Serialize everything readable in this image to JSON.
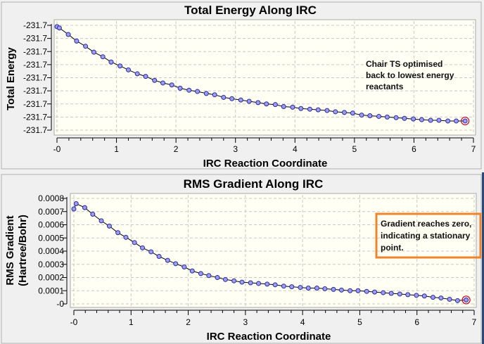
{
  "chart_data": [
    {
      "type": "line",
      "title": "Total Energy Along IRC",
      "xlabel": "IRC Reaction Coordinate",
      "ylabel": "Total Energy",
      "xlim": [
        0,
        7
      ],
      "ylim": [
        -231.6936,
        -231.692
      ],
      "grid": true,
      "x_ticks": [
        "-0",
        "1",
        "2",
        "3",
        "4",
        "5",
        "6",
        "7"
      ],
      "y_ticks": [
        "-231.7",
        "-231.7",
        "-231.7",
        "-231.7",
        "-231.7",
        "-231.7",
        "-231.7",
        "-231.7",
        "-231.7"
      ],
      "annotation": [
        "Chair TS optimised",
        "back to lowest energy",
        "reactants"
      ],
      "x": [
        0,
        0.04,
        0.19,
        0.33,
        0.48,
        0.62,
        0.77,
        0.91,
        1.06,
        1.2,
        1.35,
        1.49,
        1.64,
        1.78,
        1.93,
        2.07,
        2.22,
        2.36,
        2.51,
        2.65,
        2.8,
        2.94,
        3.09,
        3.23,
        3.38,
        3.52,
        3.67,
        3.81,
        3.96,
        4.1,
        4.25,
        4.39,
        4.54,
        4.68,
        4.83,
        4.97,
        5.12,
        5.26,
        5.41,
        5.55,
        5.7,
        5.84,
        5.99,
        6.13,
        6.28,
        6.42,
        6.57,
        6.71,
        6.86
      ],
      "values": [
        -231.69202,
        -231.69204,
        -231.69214,
        -231.69224,
        -231.69232,
        -231.69241,
        -231.69248,
        -231.69256,
        -231.69262,
        -231.69268,
        -231.69274,
        -231.69278,
        -231.69284,
        -231.69288,
        -231.69291,
        -231.69296,
        -231.69299,
        -231.69301,
        -231.69304,
        -231.69306,
        -231.6931,
        -231.69312,
        -231.69314,
        -231.69316,
        -231.69318,
        -231.6932,
        -231.69321,
        -231.69324,
        -231.69325,
        -231.69327,
        -231.69328,
        -231.69329,
        -231.6933,
        -231.69332,
        -231.69333,
        -231.69334,
        -231.69337,
        -231.69338,
        -231.69339,
        -231.6934,
        -231.69341,
        -231.69342,
        -231.69343,
        -231.69344,
        -231.69345,
        -231.69345,
        -231.69346,
        -231.69346,
        -231.69346
      ],
      "highlight_last_point": true
    },
    {
      "type": "line",
      "title": "RMS Gradient Along IRC",
      "xlabel": "IRC Reaction Coordinate",
      "ylabel": [
        "RMS Gradient",
        "(Hartree/Bohr)"
      ],
      "xlim": [
        0,
        7
      ],
      "ylim": [
        0,
        0.0008
      ],
      "grid": true,
      "x_ticks": [
        "-0",
        "1",
        "2",
        "3",
        "4",
        "5",
        "6",
        "7"
      ],
      "y_ticks": [
        "0.0008",
        "0.0007",
        "0.0006",
        "0.0005",
        "0.0004",
        "0.0003",
        "0.0002",
        "0.0001",
        "-0"
      ],
      "annotation": [
        "Gradient reaches zero,",
        "indicating a stationary",
        "point."
      ],
      "x": [
        0,
        0.04,
        0.19,
        0.33,
        0.48,
        0.62,
        0.77,
        0.91,
        1.06,
        1.2,
        1.35,
        1.49,
        1.64,
        1.78,
        1.93,
        2.07,
        2.22,
        2.36,
        2.51,
        2.65,
        2.8,
        2.94,
        3.09,
        3.23,
        3.38,
        3.52,
        3.67,
        3.81,
        3.96,
        4.1,
        4.25,
        4.39,
        4.54,
        4.68,
        4.83,
        4.97,
        5.12,
        5.26,
        5.41,
        5.55,
        5.7,
        5.84,
        5.99,
        6.13,
        6.28,
        6.42,
        6.57,
        6.71,
        6.86
      ],
      "values": [
        0.00072,
        0.00076,
        0.00073,
        0.00068,
        0.00063,
        0.00059,
        0.00054,
        0.000505,
        0.000465,
        0.000425,
        0.000395,
        0.00036,
        0.00033,
        0.000305,
        0.00028,
        0.00025,
        0.00023,
        0.000215,
        0.0002,
        0.000185,
        0.000175,
        0.000165,
        0.00016,
        0.000155,
        0.00015,
        0.000145,
        0.000135,
        0.00013,
        0.000125,
        0.00012,
        0.00012,
        0.000115,
        0.00011,
        0.000105,
        0.0001,
        0.0001,
        9.5e-05,
        9e-05,
        8.5e-05,
        8e-05,
        7.5e-05,
        7e-05,
        6.5e-05,
        6e-05,
        5e-05,
        4.5e-05,
        3.5e-05,
        2.5e-05,
        3e-05
      ],
      "highlight_last_point": true
    }
  ],
  "colors": {
    "plot_bg": "#fffff4",
    "point_fill": "#9c9cf0",
    "point_stroke": "#2a2a9a",
    "highlight": "#cc1133",
    "annotation_border": "#f0842a"
  }
}
